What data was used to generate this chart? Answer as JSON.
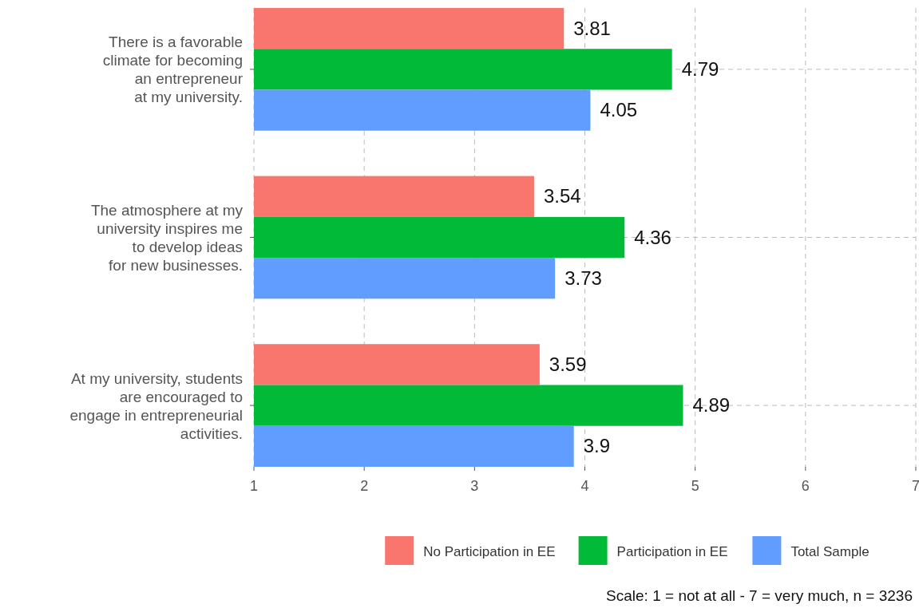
{
  "chart_data": {
    "type": "bar",
    "orientation": "horizontal",
    "categories": [
      "There is a favorable\nclimate for becoming\nan entrepreneur\nat my university.",
      "The atmosphere at my\nuniversity inspires me\nto develop ideas\nfor new businesses.",
      "At my university, students\nare encouraged to\nengage in entrepreneurial\nactivities."
    ],
    "series": [
      {
        "name": "No Participation in EE",
        "color": "#f8766d",
        "values": [
          3.81,
          3.54,
          3.59
        ]
      },
      {
        "name": "Participation in EE",
        "color": "#00ba38",
        "values": [
          4.79,
          4.36,
          4.89
        ]
      },
      {
        "name": "Total Sample",
        "color": "#619cff",
        "values": [
          4.05,
          3.73,
          3.9
        ]
      }
    ],
    "xlim": [
      1,
      7
    ],
    "xticks": [
      1,
      2,
      3,
      4,
      5,
      6,
      7
    ],
    "grid": true,
    "legend": "bottom",
    "data_labels": true,
    "annotations": [
      "Scale: 1 = not at all - 7 = very much, n = 3236"
    ]
  }
}
